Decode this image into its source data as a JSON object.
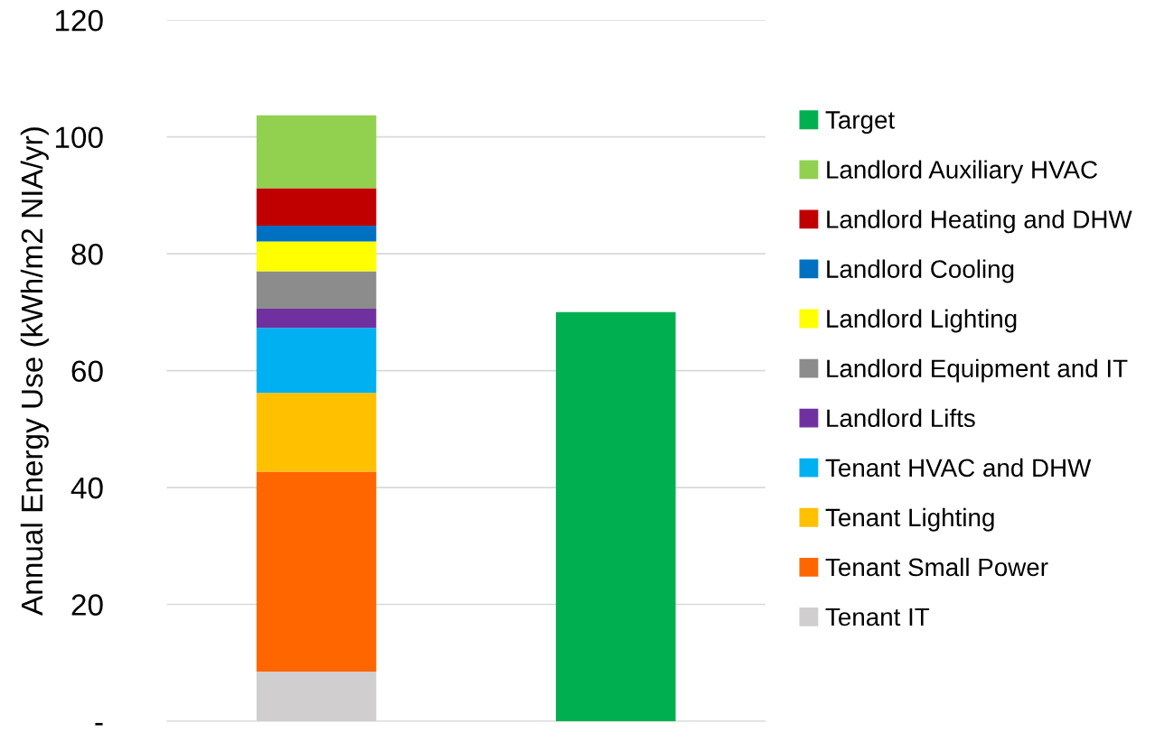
{
  "chart_data": {
    "type": "bar",
    "stacked": true,
    "ylabel": "Annual Energy Use (kWh/m2 NIA/yr)",
    "categories": [
      null,
      null
    ],
    "series": [
      {
        "name": "Tenant IT",
        "color": "#d0cece",
        "values": [
          8.5,
          null
        ]
      },
      {
        "name": "Tenant Small Power",
        "color": "#ff6600",
        "values": [
          34.2,
          null
        ]
      },
      {
        "name": "Tenant Lighting",
        "color": "#ffc000",
        "values": [
          13.5,
          null
        ]
      },
      {
        "name": "Tenant HVAC and DHW",
        "color": "#00b0f0",
        "values": [
          11.1,
          null
        ]
      },
      {
        "name": "Landlord Lifts",
        "color": "#7030a0",
        "values": [
          3.3,
          null
        ]
      },
      {
        "name": "Landlord Equipment and IT",
        "color": "#8c8c8c",
        "values": [
          6.4,
          null
        ]
      },
      {
        "name": "Landlord Lighting",
        "color": "#ffff00",
        "values": [
          5.1,
          null
        ]
      },
      {
        "name": "Landlord Cooling",
        "color": "#0070c0",
        "values": [
          2.7,
          null
        ]
      },
      {
        "name": "Landlord Heating and DHW",
        "color": "#c00000",
        "values": [
          6.4,
          null
        ]
      },
      {
        "name": "Landlord Auxiliary HVAC",
        "color": "#92d050",
        "values": [
          12.5,
          null
        ]
      },
      {
        "name": "Target",
        "color": "#00b050",
        "values": [
          null,
          70
        ]
      }
    ],
    "ylim": [
      0,
      120
    ],
    "yticks": [
      {
        "value": 0,
        "label": "-"
      },
      20,
      40,
      60,
      80,
      100,
      120
    ],
    "grid": "y",
    "legend": "right"
  }
}
